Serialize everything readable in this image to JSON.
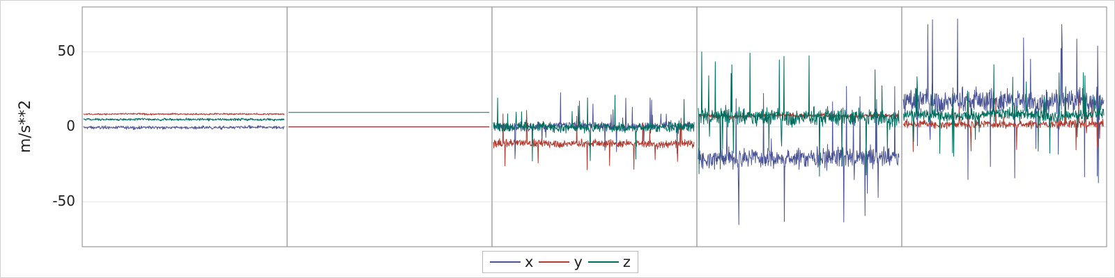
{
  "chart_data": {
    "type": "line",
    "panel_count": 5,
    "ylabel": "m/s**2",
    "ylim": [
      -80,
      80
    ],
    "yticks": [
      50,
      0,
      -50
    ],
    "ytick_labels": [
      "50",
      "0",
      "-50"
    ],
    "grid": true,
    "legend_position": "bottom-center",
    "colors": {
      "x": "#4b5596",
      "y": "#b23a2e",
      "z": "#006e5f"
    },
    "series": [
      {
        "name": "x",
        "color": "#4b5596",
        "panel_levels": [
          -0.5,
          0.1,
          0.5,
          -20,
          18
        ],
        "panel_spread": [
          1.5,
          0.0,
          4,
          10,
          12
        ]
      },
      {
        "name": "y",
        "color": "#b23a2e",
        "panel_levels": [
          8.5,
          -0.1,
          -11,
          7.5,
          2
        ],
        "panel_spread": [
          0.8,
          0.0,
          4,
          2,
          4
        ]
      },
      {
        "name": "z",
        "color": "#006e5f",
        "panel_levels": [
          5,
          9.6,
          0,
          7,
          8
        ],
        "panel_spread": [
          1.2,
          0.0,
          5,
          9,
          6
        ]
      }
    ],
    "legend": [
      {
        "label": "x",
        "color": "#4b5596"
      },
      {
        "label": "y",
        "color": "#b23a2e"
      },
      {
        "label": "z",
        "color": "#006e5f"
      }
    ]
  }
}
